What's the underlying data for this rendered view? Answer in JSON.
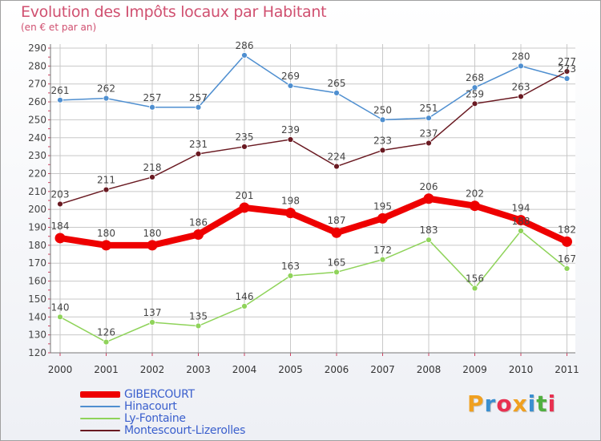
{
  "title": "Evolution des Impôts locaux par Habitant",
  "subtitle": "(en € et par an)",
  "logo": {
    "text": "Proxiti",
    "letters": [
      {
        "ch": "P",
        "color": "#f0a020"
      },
      {
        "ch": "r",
        "color": "#3a8fd0"
      },
      {
        "ch": "o",
        "color": "#e83050"
      },
      {
        "ch": "x",
        "color": "#f0a020"
      },
      {
        "ch": "i",
        "color": "#3a8fd0"
      },
      {
        "ch": "t",
        "color": "#50b040"
      },
      {
        "ch": "i",
        "color": "#e83050"
      }
    ]
  },
  "chart_data": {
    "type": "line",
    "categories": [
      "2000",
      "2001",
      "2002",
      "2003",
      "2004",
      "2005",
      "2006",
      "2007",
      "2008",
      "2009",
      "2010",
      "2011"
    ],
    "ylim": [
      120,
      290
    ],
    "yticks": [
      120,
      130,
      140,
      150,
      160,
      170,
      180,
      190,
      200,
      210,
      220,
      230,
      240,
      250,
      260,
      270,
      280,
      290
    ],
    "grid": true,
    "legend_position": "bottom-left",
    "series": [
      {
        "name": "Hinacourt",
        "color": "#4f8fd0",
        "values": [
          261,
          262,
          257,
          257,
          286,
          269,
          265,
          250,
          251,
          268,
          280,
          273
        ]
      },
      {
        "name": "Montescourt-Lizerolles",
        "color": "#6a1a22",
        "values": [
          203,
          211,
          218,
          231,
          235,
          239,
          224,
          233,
          237,
          259,
          263,
          277
        ]
      },
      {
        "name": "GIBERCOURT",
        "color": "#ee0000",
        "values": [
          184,
          180,
          180,
          186,
          201,
          198,
          187,
          195,
          206,
          202,
          194,
          182
        ]
      },
      {
        "name": "Ly-Fontaine",
        "color": "#8fd35a",
        "values": [
          140,
          126,
          137,
          135,
          146,
          163,
          165,
          172,
          183,
          156,
          188,
          167
        ]
      }
    ],
    "legend_order": [
      "GIBERCOURT",
      "Hinacourt",
      "Ly-Fontaine",
      "Montescourt-Lizerolles"
    ]
  }
}
